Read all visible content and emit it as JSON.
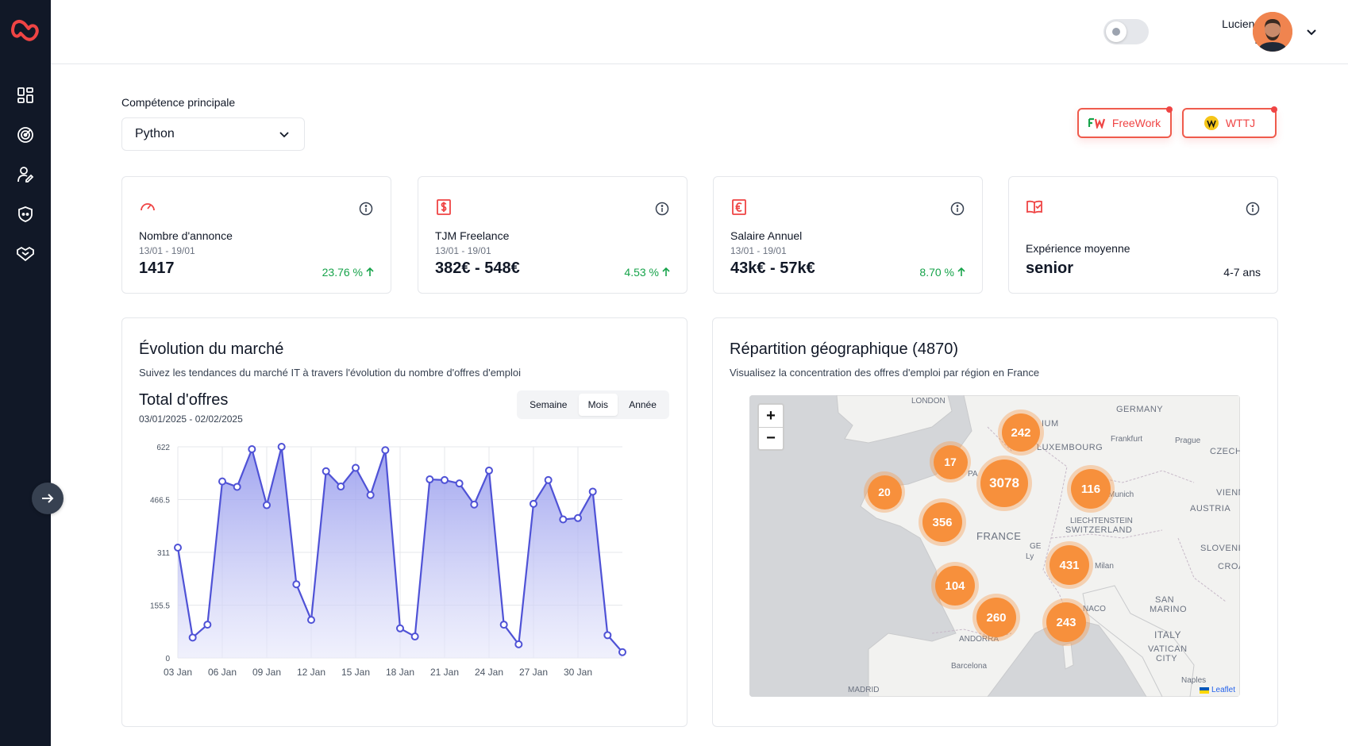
{
  "user": {
    "name": "Lucien Arbieu",
    "skill": "Python"
  },
  "filter": {
    "label": "Compétence principale",
    "value": "Python"
  },
  "sources": [
    {
      "label": "FreeWork",
      "icon": "freework-logo-icon"
    },
    {
      "label": "WTTJ",
      "icon": "wttj-logo-icon"
    }
  ],
  "stats": [
    {
      "title": "Nombre d'annonce",
      "period": "13/01 - 19/01",
      "value": "1417",
      "trend": "23.76 %",
      "icon": "speedometer-icon"
    },
    {
      "title": "TJM Freelance",
      "period": "13/01 - 19/01",
      "value": "382€ - 548€",
      "trend": "4.53 %",
      "icon": "dollar-bill-icon"
    },
    {
      "title": "Salaire Annuel",
      "period": "13/01 - 19/01",
      "value": "43k€ - 57k€",
      "trend": "8.70 %",
      "icon": "euro-bill-icon"
    },
    {
      "title": "Expérience moyenne",
      "value": "senior",
      "extra": "4-7 ans",
      "icon": "book-check-icon"
    }
  ],
  "market": {
    "title": "Évolution du marché",
    "subtitle": "Suivez les tendances du marché IT à travers l'évolution du nombre d'offres d'emploi",
    "chart_title": "Total d'offres",
    "range": "03/01/2025 - 02/02/2025",
    "tabs": [
      "Semaine",
      "Mois",
      "Année"
    ],
    "active_tab": "Mois"
  },
  "chart_data": {
    "type": "area",
    "x": [
      "03 Jan",
      "04 Jan",
      "05 Jan",
      "06 Jan",
      "07 Jan",
      "08 Jan",
      "09 Jan",
      "10 Jan",
      "11 Jan",
      "12 Jan",
      "13 Jan",
      "14 Jan",
      "15 Jan",
      "16 Jan",
      "17 Jan",
      "18 Jan",
      "19 Jan",
      "20 Jan",
      "21 Jan",
      "22 Jan",
      "23 Jan",
      "24 Jan",
      "25 Jan",
      "26 Jan",
      "27 Jan",
      "28 Jan",
      "29 Jan",
      "30 Jan",
      "31 Jan",
      "01 Feb",
      "02 Feb"
    ],
    "xticks": [
      "03 Jan",
      "06 Jan",
      "09 Jan",
      "12 Jan",
      "15 Jan",
      "18 Jan",
      "21 Jan",
      "24 Jan",
      "27 Jan",
      "30 Jan"
    ],
    "yticks": [
      "0",
      "155.5",
      "311",
      "466.5",
      "622"
    ],
    "ylim": [
      0,
      622
    ],
    "series": [
      {
        "values": [
          325,
          60,
          98,
          520,
          504,
          615,
          450,
          622,
          217,
          112,
          550,
          505,
          560,
          480,
          612,
          87,
          63,
          526,
          524,
          514,
          452,
          552,
          98,
          40,
          454,
          524,
          408,
          412,
          490,
          67,
          17
        ]
      }
    ],
    "colors": {
      "line": "#4f52d6",
      "fill_top": "#8f94ec",
      "fill_bottom": "#e6e7fb"
    },
    "grid": true
  },
  "geo": {
    "title": "Répartition géographique (4870)",
    "subtitle": "Visualisez la concentration des offres d'emploi par région en France",
    "labels": [
      "LONDON",
      "GERMANY",
      "Frankfurt",
      "Prague",
      "CZECH",
      "LUXEMBOURG",
      "IUM",
      "PA",
      "Munich",
      "VIENN",
      "AUSTRIA",
      "LIECHTENSTEIN",
      "SWITZERLAND",
      "FRANCE",
      "GE",
      "Ly",
      "SLOVENI",
      "Milan",
      "CROA",
      "SAN",
      "MARINO",
      "ITALY",
      "VATICAN",
      "CITY",
      "ANDORRA",
      "NACO",
      "Barcelona",
      "MADRID",
      "Naples"
    ],
    "clusters": [
      "242",
      "17",
      "3078",
      "20",
      "116",
      "356",
      "431",
      "104",
      "260",
      "243"
    ],
    "zoom_in": "+",
    "zoom_out": "−",
    "attribution": "Leaflet"
  }
}
